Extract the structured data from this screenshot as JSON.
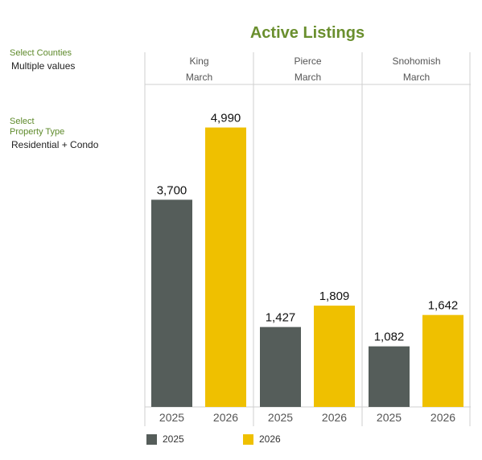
{
  "filters": {
    "counties_label": "Select Counties",
    "counties_value": "Multiple values",
    "property_label_line1": "Select",
    "property_label_line2": "Property Type",
    "property_value": "Residential + Condo"
  },
  "chart_data": {
    "type": "bar",
    "title": "Active Listings",
    "ylim": [
      0,
      5400
    ],
    "panels": [
      {
        "county": "King",
        "month": "March",
        "values": [
          3700,
          4990
        ],
        "labels": [
          "3,700",
          "4,990"
        ]
      },
      {
        "county": "Pierce",
        "month": "March",
        "values": [
          1427,
          1809
        ],
        "labels": [
          "1,427",
          "1,809"
        ]
      },
      {
        "county": "Snohomish",
        "month": "March",
        "values": [
          1082,
          1642
        ],
        "labels": [
          "1,082",
          "1,642"
        ]
      }
    ],
    "categories": [
      "2025",
      "2026"
    ],
    "series_colors": {
      "2025": "#555d5a",
      "2026": "#efc000"
    },
    "legend": [
      {
        "name": "2025",
        "color": "#555d5a"
      },
      {
        "name": "2026",
        "color": "#efc000"
      }
    ],
    "legend_position": "bottom-left",
    "grid": false
  }
}
